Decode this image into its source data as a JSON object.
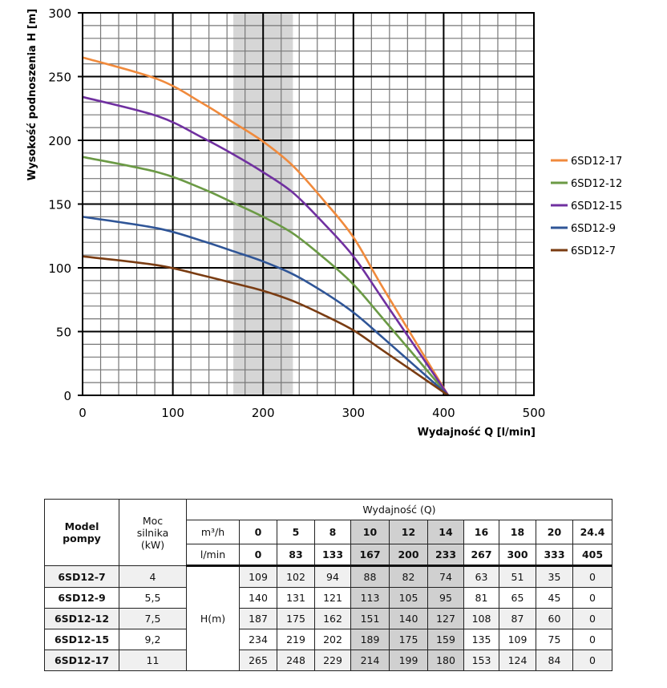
{
  "chart_data": {
    "type": "line",
    "xlabel": "Wydajność Q [l/min]",
    "ylabel": "Wysokość podnoszenia H [m]",
    "xlim": [
      0,
      500
    ],
    "ylim": [
      0,
      300
    ],
    "xticks": [
      0,
      100,
      200,
      300,
      400,
      500
    ],
    "yticks": [
      0,
      50,
      100,
      150,
      200,
      250,
      300
    ],
    "grid": true,
    "highlight_band": [
      167,
      233
    ],
    "legend_position": "right",
    "x": [
      0,
      83,
      133,
      167,
      200,
      233,
      267,
      300,
      333,
      405
    ],
    "series": [
      {
        "name": "6SD12-17",
        "color": "#f08a3c",
        "values": [
          265,
          248,
          229,
          214,
          199,
          180,
          153,
          124,
          84,
          0
        ]
      },
      {
        "name": "6SD12-12",
        "color": "#6b9a45",
        "values": [
          187,
          175,
          162,
          151,
          140,
          127,
          108,
          87,
          60,
          0
        ]
      },
      {
        "name": "6SD12-15",
        "color": "#7030a0",
        "values": [
          234,
          219,
          202,
          189,
          175,
          159,
          135,
          109,
          75,
          0
        ]
      },
      {
        "name": "6SD12-9",
        "color": "#2f5597",
        "values": [
          140,
          131,
          121,
          113,
          105,
          95,
          81,
          65,
          45,
          0
        ]
      },
      {
        "name": "6SD12-7",
        "color": "#7a3c12",
        "values": [
          109,
          102,
          94,
          88,
          82,
          74,
          63,
          51,
          35,
          0
        ]
      }
    ]
  },
  "table": {
    "model_header": "Model pompy",
    "power_header": "Moc silnika (kW)",
    "flow_header": "Wydajność (Q)",
    "unit_m3h": "m³/h",
    "unit_lmin": "l/min",
    "head_unit": "H(m)",
    "m3h": [
      "0",
      "5",
      "8",
      "10",
      "12",
      "14",
      "16",
      "18",
      "20",
      "24.4"
    ],
    "lmin": [
      "0",
      "83",
      "133",
      "167",
      "200",
      "233",
      "267",
      "300",
      "333",
      "405"
    ],
    "rows": [
      {
        "model": "6SD12-7",
        "power": "4",
        "values": [
          "109",
          "102",
          "94",
          "88",
          "82",
          "74",
          "63",
          "51",
          "35",
          "0"
        ]
      },
      {
        "model": "6SD12-9",
        "power": "5,5",
        "values": [
          "140",
          "131",
          "121",
          "113",
          "105",
          "95",
          "81",
          "65",
          "45",
          "0"
        ]
      },
      {
        "model": "6SD12-12",
        "power": "7,5",
        "values": [
          "187",
          "175",
          "162",
          "151",
          "140",
          "127",
          "108",
          "87",
          "60",
          "0"
        ]
      },
      {
        "model": "6SD12-15",
        "power": "9,2",
        "values": [
          "234",
          "219",
          "202",
          "189",
          "175",
          "159",
          "135",
          "109",
          "75",
          "0"
        ]
      },
      {
        "model": "6SD12-17",
        "power": "11",
        "values": [
          "265",
          "248",
          "229",
          "214",
          "199",
          "180",
          "153",
          "124",
          "84",
          "0"
        ]
      }
    ]
  }
}
